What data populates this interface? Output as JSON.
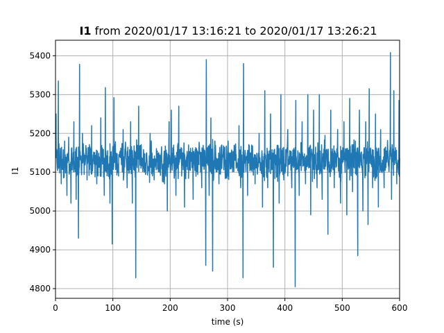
{
  "chart_data": {
    "type": "line",
    "title_bold": "I1",
    "title_rest": " from 2020/01/17 13:16:21 to 2020/01/17 13:26:21",
    "xlabel": "time (s)",
    "ylabel": "I1",
    "xlim": [
      0,
      600
    ],
    "ylim": [
      4775,
      5440
    ],
    "xticks": [
      0,
      100,
      200,
      300,
      400,
      500,
      600
    ],
    "yticks": [
      4800,
      4900,
      5000,
      5100,
      5200,
      5300,
      5400
    ],
    "grid": true,
    "line_color": "#1f77b4",
    "series": [
      {
        "baseline": 5130,
        "spikes": [
          {
            "x": 1,
            "y": 5250
          },
          {
            "x": 5,
            "y": 5335
          },
          {
            "x": 10,
            "y": 5070
          },
          {
            "x": 16,
            "y": 5180
          },
          {
            "x": 20,
            "y": 5040
          },
          {
            "x": 23,
            "y": 5190
          },
          {
            "x": 27,
            "y": 5020
          },
          {
            "x": 32,
            "y": 5230
          },
          {
            "x": 36,
            "y": 5030
          },
          {
            "x": 40,
            "y": 4930
          },
          {
            "x": 42,
            "y": 5378
          },
          {
            "x": 47,
            "y": 5200
          },
          {
            "x": 55,
            "y": 5080
          },
          {
            "x": 63,
            "y": 5220
          },
          {
            "x": 72,
            "y": 5070
          },
          {
            "x": 79,
            "y": 5240
          },
          {
            "x": 85,
            "y": 5040
          },
          {
            "x": 87,
            "y": 5318
          },
          {
            "x": 95,
            "y": 5020
          },
          {
            "x": 99,
            "y": 4915
          },
          {
            "x": 102,
            "y": 5292
          },
          {
            "x": 110,
            "y": 5090
          },
          {
            "x": 118,
            "y": 5210
          },
          {
            "x": 125,
            "y": 5060
          },
          {
            "x": 131,
            "y": 5230
          },
          {
            "x": 134,
            "y": 5020
          },
          {
            "x": 140,
            "y": 4828
          },
          {
            "x": 145,
            "y": 5270
          },
          {
            "x": 155,
            "y": 5100
          },
          {
            "x": 165,
            "y": 5200
          },
          {
            "x": 172,
            "y": 5080
          },
          {
            "x": 180,
            "y": 5150
          },
          {
            "x": 190,
            "y": 5070
          },
          {
            "x": 195,
            "y": 5000
          },
          {
            "x": 198,
            "y": 5230
          },
          {
            "x": 202,
            "y": 5260
          },
          {
            "x": 210,
            "y": 5040
          },
          {
            "x": 215,
            "y": 5270
          },
          {
            "x": 220,
            "y": 5090
          },
          {
            "x": 225,
            "y": 5010
          },
          {
            "x": 232,
            "y": 5170
          },
          {
            "x": 240,
            "y": 5030
          },
          {
            "x": 250,
            "y": 5140
          },
          {
            "x": 255,
            "y": 5060
          },
          {
            "x": 262,
            "y": 4860
          },
          {
            "x": 263,
            "y": 5390
          },
          {
            "x": 268,
            "y": 5040
          },
          {
            "x": 271,
            "y": 5240
          },
          {
            "x": 274,
            "y": 4845
          },
          {
            "x": 278,
            "y": 5180
          },
          {
            "x": 285,
            "y": 5070
          },
          {
            "x": 290,
            "y": 5170
          },
          {
            "x": 300,
            "y": 5120
          },
          {
            "x": 305,
            "y": 5150
          },
          {
            "x": 315,
            "y": 5110
          },
          {
            "x": 320,
            "y": 5220
          },
          {
            "x": 323,
            "y": 5060
          },
          {
            "x": 327,
            "y": 4828
          },
          {
            "x": 328,
            "y": 5380
          },
          {
            "x": 335,
            "y": 5040
          },
          {
            "x": 342,
            "y": 5170
          },
          {
            "x": 348,
            "y": 5070
          },
          {
            "x": 355,
            "y": 5200
          },
          {
            "x": 361,
            "y": 5010
          },
          {
            "x": 365,
            "y": 5310
          },
          {
            "x": 370,
            "y": 5060
          },
          {
            "x": 375,
            "y": 5250
          },
          {
            "x": 380,
            "y": 4855
          },
          {
            "x": 385,
            "y": 5140
          },
          {
            "x": 390,
            "y": 5020
          },
          {
            "x": 393,
            "y": 5300
          },
          {
            "x": 398,
            "y": 5080
          },
          {
            "x": 405,
            "y": 5210
          },
          {
            "x": 412,
            "y": 5060
          },
          {
            "x": 418,
            "y": 4805
          },
          {
            "x": 419,
            "y": 5285
          },
          {
            "x": 425,
            "y": 5040
          },
          {
            "x": 430,
            "y": 5230
          },
          {
            "x": 436,
            "y": 5070
          },
          {
            "x": 440,
            "y": 5300
          },
          {
            "x": 445,
            "y": 4990
          },
          {
            "x": 450,
            "y": 5260
          },
          {
            "x": 456,
            "y": 5060
          },
          {
            "x": 460,
            "y": 5300
          },
          {
            "x": 465,
            "y": 5030
          },
          {
            "x": 470,
            "y": 5195
          },
          {
            "x": 475,
            "y": 4940
          },
          {
            "x": 480,
            "y": 5260
          },
          {
            "x": 486,
            "y": 5060
          },
          {
            "x": 492,
            "y": 5210
          },
          {
            "x": 497,
            "y": 5020
          },
          {
            "x": 503,
            "y": 5230
          },
          {
            "x": 508,
            "y": 4990
          },
          {
            "x": 513,
            "y": 5290
          },
          {
            "x": 518,
            "y": 5050
          },
          {
            "x": 523,
            "y": 5180
          },
          {
            "x": 527,
            "y": 4885
          },
          {
            "x": 530,
            "y": 5260
          },
          {
            "x": 536,
            "y": 5000
          },
          {
            "x": 541,
            "y": 5230
          },
          {
            "x": 545,
            "y": 4965
          },
          {
            "x": 547,
            "y": 5315
          },
          {
            "x": 553,
            "y": 5060
          },
          {
            "x": 558,
            "y": 5250
          },
          {
            "x": 563,
            "y": 5010
          },
          {
            "x": 567,
            "y": 5210
          },
          {
            "x": 573,
            "y": 5060
          },
          {
            "x": 584,
            "y": 5408
          },
          {
            "x": 586,
            "y": 5030
          },
          {
            "x": 590,
            "y": 5310
          },
          {
            "x": 595,
            "y": 5070
          },
          {
            "x": 599,
            "y": 5285
          }
        ]
      }
    ]
  }
}
